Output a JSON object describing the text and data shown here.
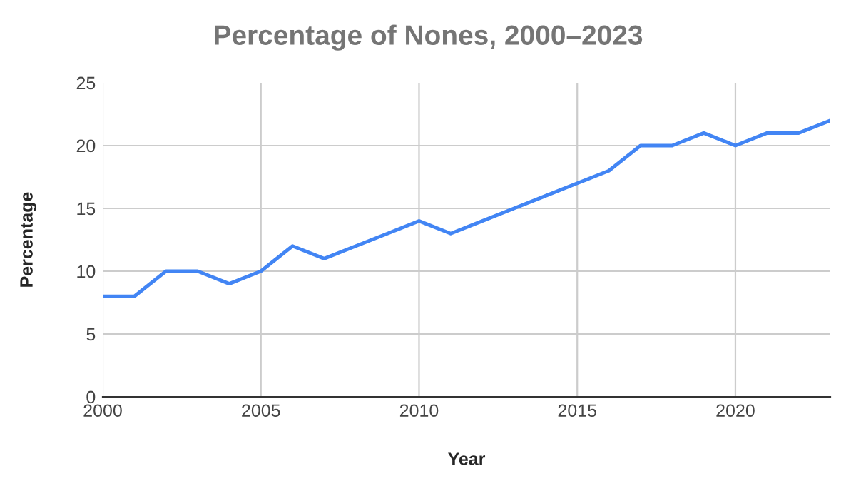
{
  "chart_data": {
    "type": "line",
    "title": "Percentage of Nones, 2000–2023",
    "xlabel": "Year",
    "ylabel": "Percentage",
    "x": [
      2000,
      2001,
      2002,
      2003,
      2004,
      2005,
      2006,
      2007,
      2008,
      2009,
      2010,
      2011,
      2012,
      2013,
      2014,
      2015,
      2016,
      2017,
      2018,
      2019,
      2020,
      2021,
      2022,
      2023
    ],
    "series": [
      {
        "color": "#4285f4",
        "values": [
          8,
          8,
          10,
          10,
          9,
          10,
          12,
          11,
          12,
          13,
          14,
          13,
          14,
          15,
          16,
          17,
          18,
          20,
          20,
          21,
          20,
          21,
          21,
          22
        ]
      }
    ],
    "xlim": [
      2000,
      2023
    ],
    "xticks": [
      2000,
      2005,
      2010,
      2015,
      2020
    ],
    "ylim": [
      0,
      25
    ],
    "yticks": [
      0,
      5,
      10,
      15,
      20,
      25
    ],
    "grid": true,
    "legend": false,
    "marker": "none",
    "line_style": "solid"
  }
}
